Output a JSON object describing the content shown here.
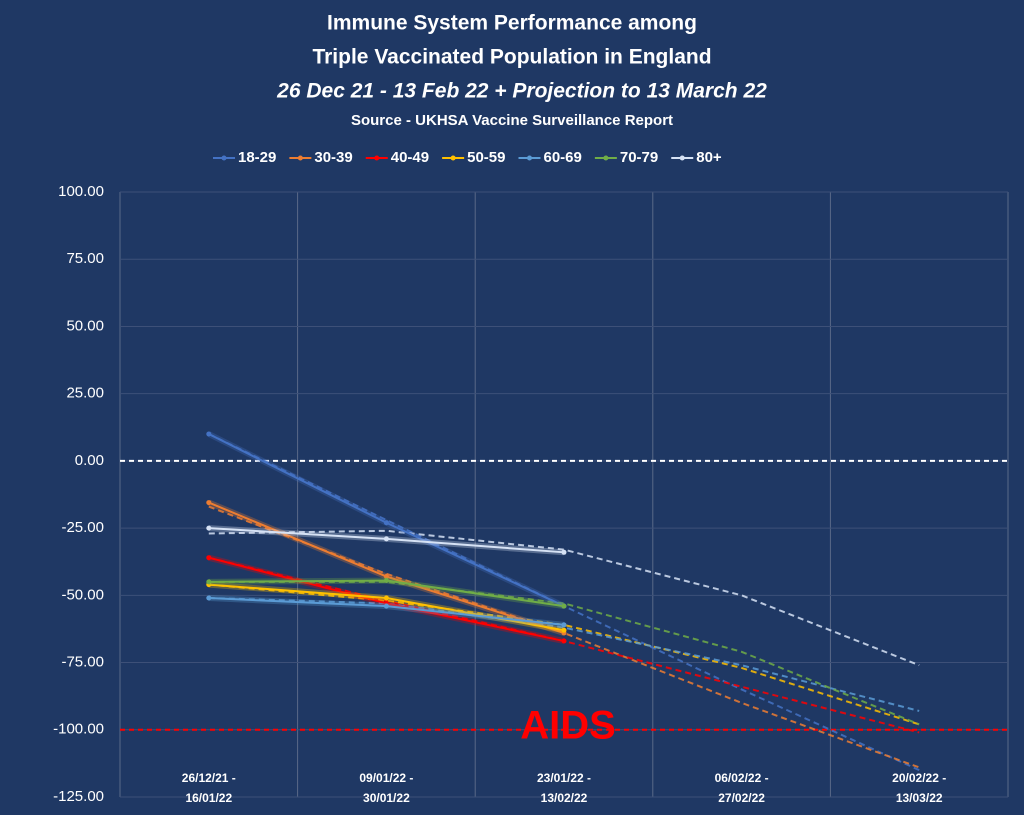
{
  "chart_data": {
    "type": "line",
    "title": [
      "Immune System Performance among",
      "Triple Vaccinated Population in England"
    ],
    "subtitle": "26 Dec 21 - 13 Feb 22 + Projection to 13 March 22",
    "source": "Source - UKHSA Vaccine Surveillance Report",
    "categories": [
      [
        "26/12/21 -",
        "16/01/22"
      ],
      [
        "09/01/22 -",
        "30/01/22"
      ],
      [
        "23/01/22 -",
        "13/02/22"
      ],
      [
        "06/02/22 -",
        "27/02/22"
      ],
      [
        "20/02/22 -",
        "13/03/22"
      ]
    ],
    "series": [
      {
        "name": "18-29",
        "color": "#4472c4",
        "values": [
          10,
          -23,
          -54,
          null,
          null
        ],
        "projection": [
          10,
          -22,
          -54,
          -85,
          -115
        ]
      },
      {
        "name": "30-39",
        "color": "#ed7d31",
        "values": [
          -15.5,
          -43,
          -64,
          null,
          null
        ],
        "projection": [
          -17,
          -42,
          -64,
          -90,
          -114
        ]
      },
      {
        "name": "40-49",
        "color": "#ff0000",
        "values": [
          -36,
          -53,
          -67,
          null,
          null
        ],
        "projection": [
          -36,
          -52,
          -67,
          -84,
          -101
        ]
      },
      {
        "name": "50-59",
        "color": "#ffc000",
        "values": [
          -46,
          -51,
          -63,
          null,
          null
        ],
        "projection": [
          -46,
          -52,
          -61,
          -77,
          -98
        ]
      },
      {
        "name": "60-69",
        "color": "#5b9bd5",
        "values": [
          -51,
          -54,
          -61,
          null,
          null
        ],
        "projection": [
          -51,
          -53,
          -62,
          -76,
          -93
        ]
      },
      {
        "name": "70-79",
        "color": "#70ad47",
        "values": [
          -45,
          -44.5,
          -54,
          null,
          null
        ],
        "projection": [
          -45,
          -45,
          -53,
          -71,
          -98
        ]
      },
      {
        "name": "80+",
        "color": "#d6e2f5",
        "values": [
          -25,
          -29,
          -34,
          null,
          null
        ],
        "projection": [
          -27,
          -26,
          -33,
          -50,
          -76
        ]
      }
    ],
    "ylim": [
      -125,
      100
    ],
    "yticks": [
      {
        "value": -125,
        "label": "-125.00"
      },
      {
        "value": -100,
        "label": "-100.00"
      },
      {
        "value": -75,
        "label": "-75.00"
      },
      {
        "value": -50,
        "label": "-50.00"
      },
      {
        "value": -25,
        "label": "-25.00"
      },
      {
        "value": 0,
        "label": "0.00"
      },
      {
        "value": 25,
        "label": "25.00"
      },
      {
        "value": 50,
        "label": "50.00"
      },
      {
        "value": 75,
        "label": "75.00"
      },
      {
        "value": 100,
        "label": "100.00"
      }
    ],
    "grid": true,
    "legend": "top",
    "reference_lines": [
      {
        "value": 0,
        "color": "#ffffff"
      },
      {
        "value": -100,
        "color": "#ff0000",
        "label": "AIDS"
      }
    ]
  }
}
